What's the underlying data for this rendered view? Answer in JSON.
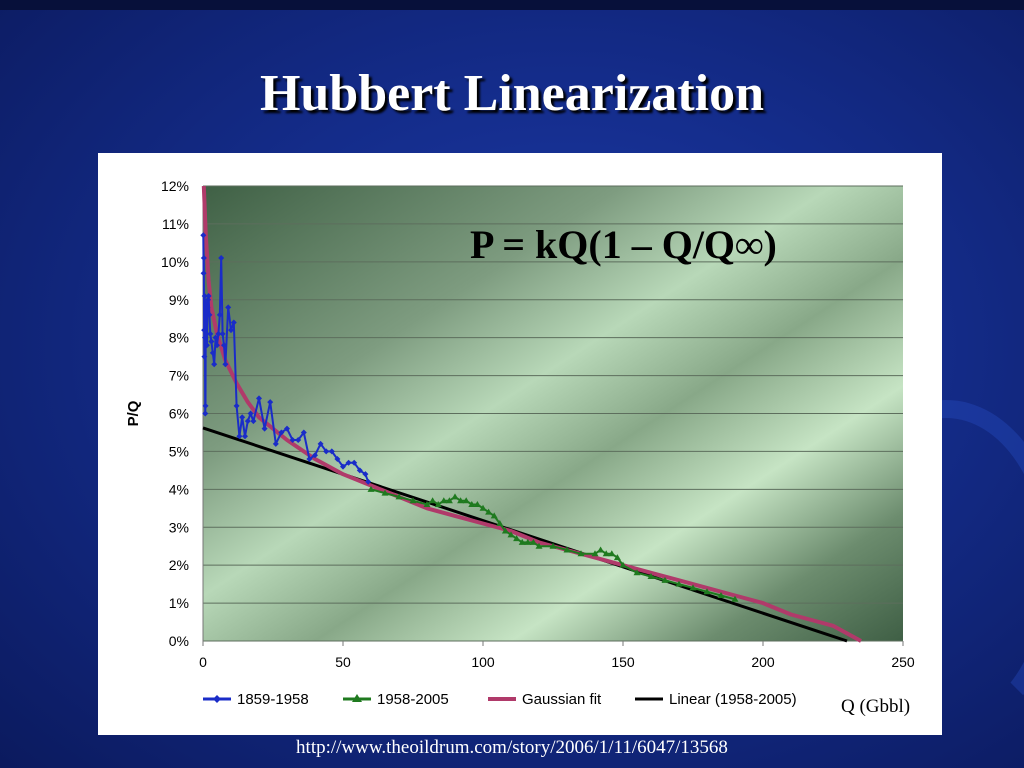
{
  "slide": {
    "title": "Hubbert Linearization",
    "source": "http://www.theoildrum.com/story/2006/1/11/6047/13568"
  },
  "colors": {
    "series_1859": "#1a2cc8",
    "series_1958": "#1f7a1f",
    "gaussian": "#b03a6a",
    "linear": "#000000"
  },
  "chart_data": {
    "type": "line",
    "title": "",
    "formula": "P = kQ(1 – Q/Q∞)",
    "xlabel": "Q (Gbbl)",
    "ylabel": "P/Q",
    "xlim": [
      0,
      250
    ],
    "ylim": [
      0,
      0.12
    ],
    "xticks": [
      0,
      50,
      100,
      150,
      200,
      250
    ],
    "xtick_labels": [
      "0",
      "50",
      "100",
      "150",
      "200",
      "250"
    ],
    "yticks": [
      0,
      0.01,
      0.02,
      0.03,
      0.04,
      0.05,
      0.06,
      0.07,
      0.08,
      0.09,
      0.1,
      0.11,
      0.12
    ],
    "ytick_labels": [
      "0%",
      "1%",
      "2%",
      "3%",
      "4%",
      "5%",
      "6%",
      "7%",
      "8%",
      "9%",
      "10%",
      "11%",
      "12%"
    ],
    "grid": true,
    "legend_position": "bottom",
    "series": [
      {
        "name": "1859-1958",
        "style": "line-diamond",
        "x": [
          0.1,
          0.2,
          0.3,
          0.4,
          0.5,
          0.6,
          0.7,
          0.8,
          0.9,
          1.0,
          1.2,
          1.4,
          1.6,
          1.8,
          2.0,
          2.3,
          2.6,
          3.0,
          3.5,
          4.0,
          4.5,
          5.0,
          5.5,
          6.0,
          6.5,
          7.0,
          7.5,
          8.0,
          9.0,
          10.0,
          11.0,
          12.0,
          13.0,
          14.0,
          15.0,
          16.0,
          17.0,
          18.0,
          20.0,
          22.0,
          24.0,
          26.0,
          28.0,
          30.0,
          32.0,
          34.0,
          36.0,
          38.0,
          40.0,
          42.0,
          44.0,
          46.0,
          48.0,
          50.0,
          52.0,
          54.0,
          56.0,
          58.0,
          59.0
        ],
        "y": [
          0.107,
          0.097,
          0.101,
          0.082,
          0.075,
          0.091,
          0.08,
          0.06,
          0.062,
          0.089,
          0.087,
          0.078,
          0.088,
          0.09,
          0.091,
          0.086,
          0.081,
          0.079,
          0.076,
          0.073,
          0.08,
          0.078,
          0.081,
          0.086,
          0.101,
          0.081,
          0.078,
          0.073,
          0.088,
          0.082,
          0.084,
          0.062,
          0.054,
          0.059,
          0.054,
          0.058,
          0.06,
          0.058,
          0.064,
          0.056,
          0.063,
          0.052,
          0.055,
          0.056,
          0.053,
          0.053,
          0.055,
          0.048,
          0.049,
          0.052,
          0.05,
          0.05,
          0.048,
          0.046,
          0.047,
          0.047,
          0.045,
          0.044,
          0.042
        ]
      },
      {
        "name": "1958-2005",
        "style": "line-triangle",
        "x": [
          60,
          65,
          70,
          75,
          80,
          82,
          84,
          86,
          88,
          90,
          92,
          94,
          96,
          98,
          100,
          102,
          104,
          106,
          108,
          110,
          112,
          114,
          116,
          118,
          120,
          125,
          130,
          135,
          140,
          142,
          144,
          146,
          148,
          150,
          155,
          160,
          165,
          170,
          175,
          180,
          185,
          190
        ],
        "y": [
          0.04,
          0.039,
          0.038,
          0.037,
          0.036,
          0.037,
          0.036,
          0.037,
          0.037,
          0.038,
          0.037,
          0.037,
          0.036,
          0.036,
          0.035,
          0.034,
          0.033,
          0.031,
          0.029,
          0.028,
          0.027,
          0.026,
          0.026,
          0.026,
          0.025,
          0.025,
          0.024,
          0.023,
          0.023,
          0.024,
          0.023,
          0.023,
          0.022,
          0.02,
          0.018,
          0.017,
          0.016,
          0.015,
          0.014,
          0.013,
          0.012,
          0.011
        ]
      },
      {
        "name": "Gaussian fit",
        "style": "smooth-line",
        "x": [
          0.3,
          1,
          2,
          3,
          5,
          8,
          12,
          16,
          20,
          25,
          30,
          40,
          50,
          60,
          70,
          80,
          90,
          100,
          110,
          120,
          130,
          140,
          150,
          160,
          170,
          180,
          190,
          200,
          210,
          220,
          225,
          230,
          235
        ],
        "y": [
          0.12,
          0.107,
          0.095,
          0.088,
          0.081,
          0.074,
          0.068,
          0.063,
          0.059,
          0.056,
          0.053,
          0.048,
          0.044,
          0.041,
          0.038,
          0.035,
          0.033,
          0.031,
          0.029,
          0.026,
          0.024,
          0.022,
          0.02,
          0.018,
          0.016,
          0.014,
          0.012,
          0.01,
          0.007,
          0.005,
          0.004,
          0.002,
          0.0
        ]
      },
      {
        "name": "Linear (1958-2005)",
        "style": "straight-line",
        "x": [
          0,
          230
        ],
        "y": [
          0.0562,
          0.0
        ]
      }
    ]
  }
}
